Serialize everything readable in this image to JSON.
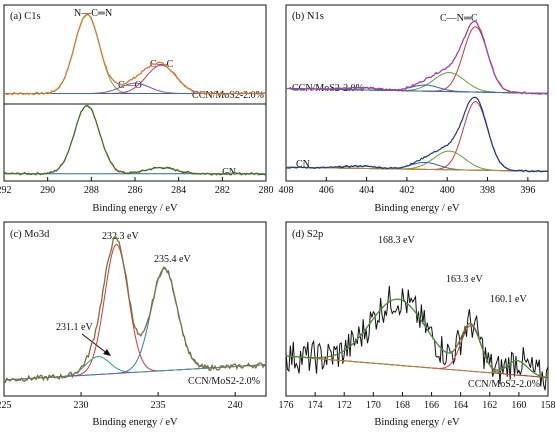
{
  "colors": {
    "C1s_raw": "#d97a2a",
    "C1s_CN_peak": "#7aa84a",
    "C1s_CO_peak": "#6a5aa8",
    "C1s_CC_peak": "#c23a6a",
    "N1s_raw": "#9a45a8",
    "N1s_main": "#d03838",
    "N1s_sub": "#6a9a40",
    "N1s_sat": "#3a5aa8",
    "Mo_raw": "#7a7040",
    "Mo_5_2": "#d03838",
    "Mo_3_2": "#3a7aa8",
    "Mo_bg": "#b040b0",
    "S_raw": "#111111",
    "S_env": "#4a8a3a",
    "S_bg": "#2a8a8a",
    "envelope": "#4a8a3a",
    "baseline": "#2a6a8a",
    "CN_raw": "#3a6a2a",
    "CN_fit": "#b08a3a",
    "N_CN_raw": "#1a3a8a"
  },
  "chart_data": [
    {
      "panel": "a",
      "type": "line",
      "title": "(a) C1s",
      "xlabel": "Binding energy / eV",
      "xlim": [
        292,
        280
      ],
      "xticks": [
        292,
        290,
        288,
        286,
        284,
        282,
        280
      ],
      "annotations": [
        "N—C═N",
        "C—O",
        "C—C"
      ],
      "series": [
        {
          "name": "CCN/MoS2-2.0%",
          "peaks": [
            {
              "center": 288.2,
              "height": 0.92,
              "fwhm": 1.35
            },
            {
              "center": 286.0,
              "height": 0.12,
              "fwhm": 1.6
            },
            {
              "center": 284.8,
              "height": 0.33,
              "fwhm": 1.6
            }
          ]
        },
        {
          "name": "CN",
          "peaks": [
            {
              "center": 288.2,
              "height": 0.9,
              "fwhm": 1.35
            },
            {
              "center": 284.8,
              "height": 0.08,
              "fwhm": 1.6
            }
          ]
        }
      ]
    },
    {
      "panel": "b",
      "type": "line",
      "title": "(b) N1s",
      "xlabel": "Binding energy / eV",
      "xlim": [
        408,
        395
      ],
      "xticks": [
        408,
        406,
        404,
        402,
        400,
        398,
        396
      ],
      "annotations": [
        "C—N═C"
      ],
      "series": [
        {
          "name": "CCN/MoS2-2.0%",
          "peaks": [
            {
              "center": 398.6,
              "height": 0.86,
              "fwhm": 1.4
            },
            {
              "center": 399.9,
              "height": 0.25,
              "fwhm": 1.8
            },
            {
              "center": 401.1,
              "height": 0.08,
              "fwhm": 1.6
            },
            {
              "center": 404.3,
              "height": 0.03,
              "fwhm": 2.0
            }
          ]
        },
        {
          "name": "CN",
          "peaks": [
            {
              "center": 398.6,
              "height": 0.88,
              "fwhm": 1.4
            },
            {
              "center": 399.9,
              "height": 0.24,
              "fwhm": 1.8
            },
            {
              "center": 401.1,
              "height": 0.09,
              "fwhm": 1.6
            },
            {
              "center": 404.3,
              "height": 0.03,
              "fwhm": 2.0
            }
          ]
        }
      ]
    },
    {
      "panel": "c",
      "type": "line",
      "title": "(c) Mo3d",
      "xlabel": "Binding energy / eV",
      "xlim": [
        225,
        242
      ],
      "xticks": [
        225,
        230,
        235,
        240
      ],
      "annotations": [
        "232.3 eV",
        "235.4 eV",
        "231.1 eV"
      ],
      "legend": "CCN/MoS2-2.0%",
      "peaks": [
        {
          "center": 232.3,
          "height": 0.86,
          "fwhm": 1.8,
          "label": "232.3 eV"
        },
        {
          "center": 235.4,
          "height": 0.68,
          "fwhm": 2.0,
          "label": "235.4 eV"
        },
        {
          "center": 231.1,
          "height": 0.12,
          "fwhm": 1.8,
          "label": "231.1 eV"
        }
      ]
    },
    {
      "panel": "d",
      "type": "line",
      "title": "(d) S2p",
      "xlabel": "Binding energy / eV",
      "xlim": [
        176,
        158
      ],
      "xticks": [
        176,
        174,
        172,
        170,
        168,
        166,
        164,
        162,
        160,
        158
      ],
      "annotations": [
        "168.3 eV",
        "163.3 eV",
        "160.1 eV"
      ],
      "legend": "CCN/MoS2-2.0%",
      "peaks": [
        {
          "center": 168.3,
          "height": 0.55,
          "fwhm": 4.5,
          "label": "168.3 eV"
        },
        {
          "center": 163.3,
          "height": 0.38,
          "fwhm": 1.6,
          "label": "163.3 eV"
        },
        {
          "center": 160.1,
          "height": 0.12,
          "fwhm": 1.6,
          "label": "160.1 eV"
        }
      ]
    }
  ]
}
